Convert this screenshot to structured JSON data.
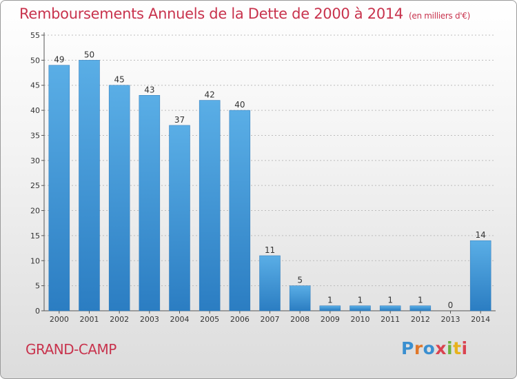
{
  "title": "Remboursements Annuels de la Dette de 2000 à 2014",
  "subtitle": "(en milliers d'€)",
  "commune": "GRAND-CAMP",
  "logo": "Proxiti",
  "colors": {
    "title": "#c8334d",
    "bar_top": "#5aaee6",
    "bar_bottom": "#2b7dc2",
    "grid": "#bbbbbb"
  },
  "chart_data": {
    "type": "bar",
    "title": "Remboursements Annuels de la Dette de 2000 à 2014",
    "subtitle": "(en milliers d'€)",
    "xlabel": "",
    "ylabel": "",
    "categories": [
      "2000",
      "2001",
      "2002",
      "2003",
      "2004",
      "2005",
      "2006",
      "2007",
      "2008",
      "2009",
      "2010",
      "2011",
      "2012",
      "2013",
      "2014"
    ],
    "values": [
      49,
      50,
      45,
      43,
      37,
      42,
      40,
      11,
      5,
      1,
      1,
      1,
      1,
      0,
      14
    ],
    "ylim": [
      0,
      55
    ],
    "yticks": [
      0,
      5,
      10,
      15,
      20,
      25,
      30,
      35,
      40,
      45,
      50,
      55
    ],
    "grid": true,
    "legend": "none"
  }
}
